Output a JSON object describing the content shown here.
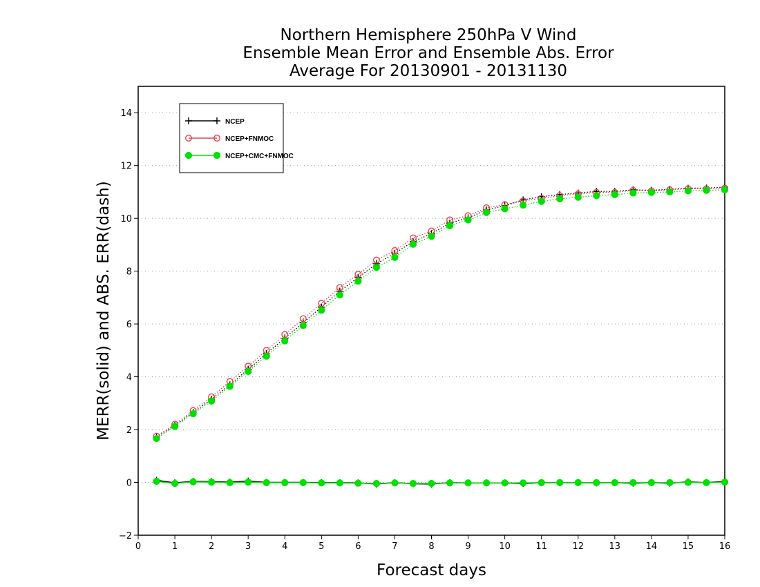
{
  "chart_data": {
    "type": "line",
    "title": [
      "Northern Hemisphere 250hPa V Wind",
      "Ensemble Mean Error and Ensemble Abs. Error",
      "Average For 20130901 - 20131130"
    ],
    "xlabel": "Forecast days",
    "ylabel": "MERR(solid) and ABS. ERR(dash)",
    "xlim": [
      0,
      16
    ],
    "ylim": [
      -2,
      15
    ],
    "xticks": [
      0,
      1,
      2,
      3,
      4,
      5,
      6,
      7,
      8,
      9,
      10,
      11,
      12,
      13,
      14,
      15,
      16
    ],
    "yticks": [
      -2,
      0,
      2,
      4,
      6,
      8,
      10,
      12,
      14
    ],
    "grid": "horizontal-dotted",
    "legend_position": "top-left",
    "x": [
      0.5,
      1,
      1.5,
      2,
      2.5,
      3,
      3.5,
      4,
      4.5,
      5,
      5.5,
      6,
      6.5,
      7,
      7.5,
      8,
      8.5,
      9,
      9.5,
      10,
      10.5,
      11,
      11.5,
      12,
      12.5,
      13,
      13.5,
      14,
      14.5,
      15,
      15.5,
      16
    ],
    "series": [
      {
        "name": "NCEP",
        "color": "#000000",
        "marker": "plus",
        "abs_err": [
          1.72,
          2.16,
          2.65,
          3.15,
          3.7,
          4.28,
          4.88,
          5.46,
          6.05,
          6.64,
          7.24,
          7.76,
          8.28,
          8.68,
          9.12,
          9.42,
          9.82,
          10.02,
          10.32,
          10.48,
          10.7,
          10.82,
          10.9,
          10.96,
          11.02,
          11.02,
          11.08,
          11.06,
          11.1,
          11.14,
          11.15,
          11.18
        ],
        "mean_err": [
          0.08,
          -0.02,
          0.04,
          0.03,
          0.01,
          0.05,
          0.0,
          0.0,
          0.0,
          -0.01,
          -0.01,
          -0.02,
          -0.06,
          -0.01,
          -0.05,
          -0.06,
          -0.01,
          -0.02,
          -0.02,
          -0.02,
          -0.04,
          -0.01,
          -0.01,
          -0.01,
          -0.02,
          -0.01,
          -0.03,
          -0.01,
          -0.03,
          0.02,
          -0.01,
          0.04
        ]
      },
      {
        "name": "NCEP+FNMOC",
        "color": "#e8404a",
        "marker": "open-circle",
        "abs_err": [
          1.75,
          2.2,
          2.72,
          3.24,
          3.82,
          4.4,
          5.0,
          5.6,
          6.2,
          6.78,
          7.38,
          7.88,
          8.42,
          8.78,
          9.26,
          9.52,
          9.94,
          10.1,
          10.4,
          10.52,
          10.66,
          10.76,
          10.86,
          10.92,
          10.98,
          10.98,
          11.06,
          11.04,
          11.08,
          11.12,
          11.12,
          11.14
        ]
      },
      {
        "name": "NCEP+CMC+FNMOC",
        "color": "#00e000",
        "marker": "filled-circle",
        "abs_err": [
          1.66,
          2.12,
          2.6,
          3.08,
          3.64,
          4.2,
          4.78,
          5.36,
          5.94,
          6.52,
          7.1,
          7.62,
          8.14,
          8.52,
          9.02,
          9.32,
          9.72,
          9.94,
          10.22,
          10.36,
          10.5,
          10.64,
          10.74,
          10.8,
          10.86,
          10.9,
          10.96,
          10.98,
          11.0,
          11.04,
          11.06,
          11.08
        ],
        "mean_err": [
          0.04,
          -0.04,
          0.02,
          0.01,
          -0.01,
          0.01,
          -0.01,
          -0.01,
          -0.01,
          -0.02,
          -0.02,
          -0.03,
          -0.04,
          -0.02,
          -0.04,
          -0.04,
          -0.02,
          -0.02,
          -0.02,
          -0.02,
          -0.02,
          -0.01,
          -0.01,
          -0.01,
          -0.01,
          -0.01,
          -0.01,
          -0.01,
          -0.01,
          0.0,
          -0.01,
          0.01
        ]
      }
    ]
  }
}
